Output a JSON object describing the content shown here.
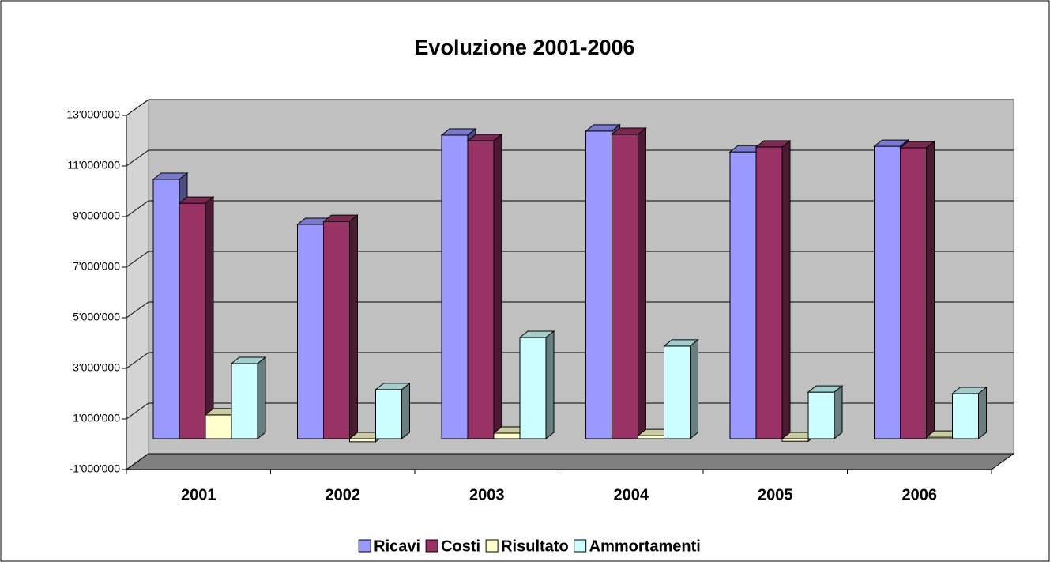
{
  "chart_data": {
    "type": "bar3d",
    "title": "Evoluzione 2001-2006",
    "categories": [
      "2001",
      "2002",
      "2003",
      "2004",
      "2005",
      "2006"
    ],
    "series": [
      {
        "name": "Ricavi",
        "color": "#9999ff",
        "values": [
          10250000,
          8470000,
          12000000,
          12160000,
          11340000,
          11560000
        ]
      },
      {
        "name": "Costi",
        "color": "#993366",
        "values": [
          9310000,
          8590000,
          11780000,
          12030000,
          11530000,
          11500000
        ]
      },
      {
        "name": "Risultato",
        "color": "#ffffcc",
        "values": [
          940000,
          -120000,
          220000,
          120000,
          -100000,
          60000
        ]
      },
      {
        "name": "Ammortamenti",
        "color": "#ccffff",
        "values": [
          2970000,
          1940000,
          4000000,
          3660000,
          1840000,
          1780000
        ]
      }
    ],
    "ylim": [
      -1000000,
      13000000
    ],
    "yticks": [
      {
        "value": -1000000,
        "label": "-1'000'000"
      },
      {
        "value": 1000000,
        "label": "1'000'000"
      },
      {
        "value": 3000000,
        "label": "3'000'000"
      },
      {
        "value": 5000000,
        "label": "5'000'000"
      },
      {
        "value": 7000000,
        "label": "7'000'000"
      },
      {
        "value": 9000000,
        "label": "9'000'000"
      },
      {
        "value": 11000000,
        "label": "11'000'000"
      },
      {
        "value": 13000000,
        "label": "13'000'000"
      }
    ],
    "grid": true
  }
}
